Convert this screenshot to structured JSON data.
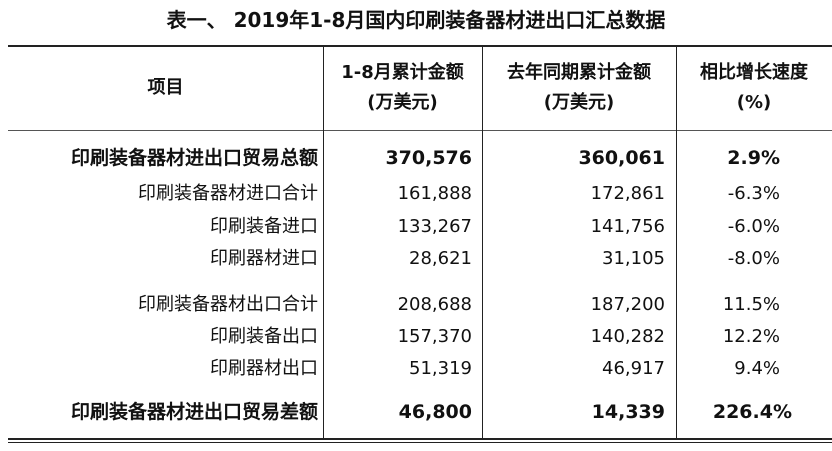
{
  "title": "表一、 2019年1-8月国内印刷装备器材进出口汇总数据",
  "headers": [
    {
      "line1": "项目",
      "line2": ""
    },
    {
      "line1": "1-8月累计金额",
      "line2": "(万美元)"
    },
    {
      "line1": "去年同期累计金额",
      "line2": "(万美元)"
    },
    {
      "line1": "相比增长速度",
      "line2": "(%)"
    }
  ],
  "rows": [
    {
      "item": "印刷装备器材进出口贸易总额",
      "current": "370,576",
      "previous": "360,061",
      "growth": "2.9%",
      "bold": true
    },
    {
      "item": "印刷装备器材进口合计",
      "current": "161,888",
      "previous": "172,861",
      "growth": "-6.3%"
    },
    {
      "item": "印刷装备进口",
      "current": "133,267",
      "previous": "141,756",
      "growth": "-6.0%"
    },
    {
      "item": "印刷器材进口",
      "current": "28,621",
      "previous": "31,105",
      "growth": "-8.0%"
    },
    {
      "item": "印刷装备器材出口合计",
      "current": "208,688",
      "previous": "187,200",
      "growth": "11.5%"
    },
    {
      "item": "印刷装备出口",
      "current": "157,370",
      "previous": "140,282",
      "growth": "12.2%"
    },
    {
      "item": "印刷器材出口",
      "current": "51,319",
      "previous": "46,917",
      "growth": "9.4%"
    },
    {
      "item": "印刷装备器材进出口贸易差额",
      "current": "46,800",
      "previous": "14,339",
      "growth": "226.4%",
      "bold": true
    }
  ]
}
